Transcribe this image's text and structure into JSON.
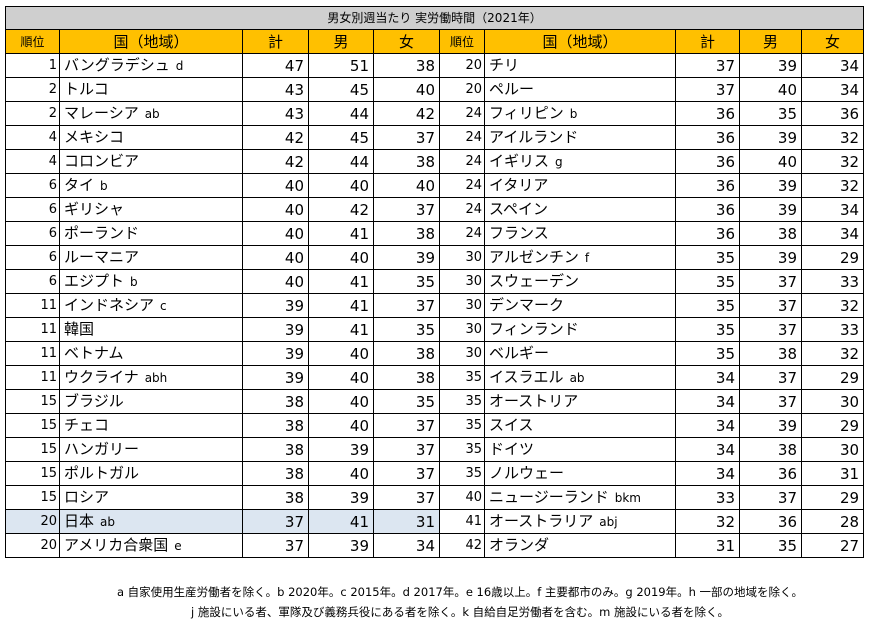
{
  "title": "男女別週当たり 実労働時間（2021年）",
  "headers": {
    "rank": "順位",
    "country": "国（地域）",
    "total": "計",
    "male": "男",
    "female": "女"
  },
  "left": [
    {
      "rank": "1",
      "country": "バングラデシュ",
      "suffix": "d",
      "total": "47",
      "male": "51",
      "female": "38"
    },
    {
      "rank": "2",
      "country": "トルコ",
      "suffix": "",
      "total": "43",
      "male": "45",
      "female": "40"
    },
    {
      "rank": "2",
      "country": "マレーシア",
      "suffix": "ab",
      "total": "43",
      "male": "44",
      "female": "42"
    },
    {
      "rank": "4",
      "country": "メキシコ",
      "suffix": "",
      "total": "42",
      "male": "45",
      "female": "37"
    },
    {
      "rank": "4",
      "country": "コロンビア",
      "suffix": "",
      "total": "42",
      "male": "44",
      "female": "38"
    },
    {
      "rank": "6",
      "country": "タイ",
      "suffix": "b",
      "total": "40",
      "male": "40",
      "female": "40"
    },
    {
      "rank": "6",
      "country": "ギリシャ",
      "suffix": "",
      "total": "40",
      "male": "42",
      "female": "37"
    },
    {
      "rank": "6",
      "country": "ポーランド",
      "suffix": "",
      "total": "40",
      "male": "41",
      "female": "38"
    },
    {
      "rank": "6",
      "country": "ルーマニア",
      "suffix": "",
      "total": "40",
      "male": "40",
      "female": "39"
    },
    {
      "rank": "6",
      "country": "エジプト",
      "suffix": "b",
      "total": "40",
      "male": "41",
      "female": "35"
    },
    {
      "rank": "11",
      "country": "インドネシア",
      "suffix": "c",
      "total": "39",
      "male": "41",
      "female": "37"
    },
    {
      "rank": "11",
      "country": "韓国",
      "suffix": "",
      "total": "39",
      "male": "41",
      "female": "35"
    },
    {
      "rank": "11",
      "country": "ベトナム",
      "suffix": "",
      "total": "39",
      "male": "40",
      "female": "38"
    },
    {
      "rank": "11",
      "country": "ウクライナ",
      "suffix": "abh",
      "total": "39",
      "male": "40",
      "female": "38"
    },
    {
      "rank": "15",
      "country": "ブラジル",
      "suffix": "",
      "total": "38",
      "male": "40",
      "female": "35"
    },
    {
      "rank": "15",
      "country": "チェコ",
      "suffix": "",
      "total": "38",
      "male": "40",
      "female": "37"
    },
    {
      "rank": "15",
      "country": "ハンガリー",
      "suffix": "",
      "total": "38",
      "male": "39",
      "female": "37"
    },
    {
      "rank": "15",
      "country": "ポルトガル",
      "suffix": "",
      "total": "38",
      "male": "40",
      "female": "37"
    },
    {
      "rank": "15",
      "country": "ロシア",
      "suffix": "",
      "total": "38",
      "male": "39",
      "female": "37"
    },
    {
      "rank": "20",
      "country": "日本",
      "suffix": "ab",
      "total": "37",
      "male": "41",
      "female": "31"
    },
    {
      "rank": "20",
      "country": "アメリカ合衆国",
      "suffix": "e",
      "total": "37",
      "male": "39",
      "female": "34"
    }
  ],
  "right": [
    {
      "rank": "20",
      "country": "チリ",
      "suffix": "",
      "total": "37",
      "male": "39",
      "female": "34"
    },
    {
      "rank": "20",
      "country": "ペルー",
      "suffix": "",
      "total": "37",
      "male": "40",
      "female": "34"
    },
    {
      "rank": "24",
      "country": "フィリピン",
      "suffix": "b",
      "total": "36",
      "male": "35",
      "female": "36"
    },
    {
      "rank": "24",
      "country": "アイルランド",
      "suffix": "",
      "total": "36",
      "male": "39",
      "female": "32"
    },
    {
      "rank": "24",
      "country": "イギリス",
      "suffix": "g",
      "total": "36",
      "male": "40",
      "female": "32"
    },
    {
      "rank": "24",
      "country": "イタリア",
      "suffix": "",
      "total": "36",
      "male": "39",
      "female": "32"
    },
    {
      "rank": "24",
      "country": "スペイン",
      "suffix": "",
      "total": "36",
      "male": "39",
      "female": "34"
    },
    {
      "rank": "24",
      "country": "フランス",
      "suffix": "",
      "total": "36",
      "male": "38",
      "female": "34"
    },
    {
      "rank": "30",
      "country": "アルゼンチン",
      "suffix": "f",
      "total": "35",
      "male": "39",
      "female": "29"
    },
    {
      "rank": "30",
      "country": "スウェーデン",
      "suffix": "",
      "total": "35",
      "male": "37",
      "female": "33"
    },
    {
      "rank": "30",
      "country": "デンマーク",
      "suffix": "",
      "total": "35",
      "male": "37",
      "female": "32"
    },
    {
      "rank": "30",
      "country": "フィンランド",
      "suffix": "",
      "total": "35",
      "male": "37",
      "female": "33"
    },
    {
      "rank": "30",
      "country": "ベルギー",
      "suffix": "",
      "total": "35",
      "male": "38",
      "female": "32"
    },
    {
      "rank": "35",
      "country": "イスラエル",
      "suffix": "ab",
      "total": "34",
      "male": "37",
      "female": "29"
    },
    {
      "rank": "35",
      "country": "オーストリア",
      "suffix": "",
      "total": "34",
      "male": "37",
      "female": "30"
    },
    {
      "rank": "35",
      "country": "スイス",
      "suffix": "",
      "total": "34",
      "male": "39",
      "female": "29"
    },
    {
      "rank": "35",
      "country": "ドイツ",
      "suffix": "",
      "total": "34",
      "male": "38",
      "female": "30"
    },
    {
      "rank": "35",
      "country": "ノルウェー",
      "suffix": "",
      "total": "34",
      "male": "36",
      "female": "31"
    },
    {
      "rank": "40",
      "country": "ニュージーランド",
      "suffix": "bkm",
      "total": "33",
      "male": "37",
      "female": "29"
    },
    {
      "rank": "41",
      "country": "オーストラリア",
      "suffix": "abj",
      "total": "32",
      "male": "36",
      "female": "28"
    },
    {
      "rank": "42",
      "country": "オランダ",
      "suffix": "",
      "total": "31",
      "male": "35",
      "female": "27"
    }
  ],
  "highlight_country": "日本",
  "colors": {
    "header": "#ffc000",
    "title": "#cfcfcf",
    "highlight": "#dce6f1"
  },
  "notes": [
    "a 自家使用生産労働者を除く。b 2020年。c 2015年。d 2017年。e 16歳以上。f 主要都市のみ。g 2019年。h 一部の地域を除く。",
    "j 施設にいる者、軍隊及び義務兵役にある者を除く。k 自給自足労働者を含む。m 施設にいる者を除く。"
  ]
}
